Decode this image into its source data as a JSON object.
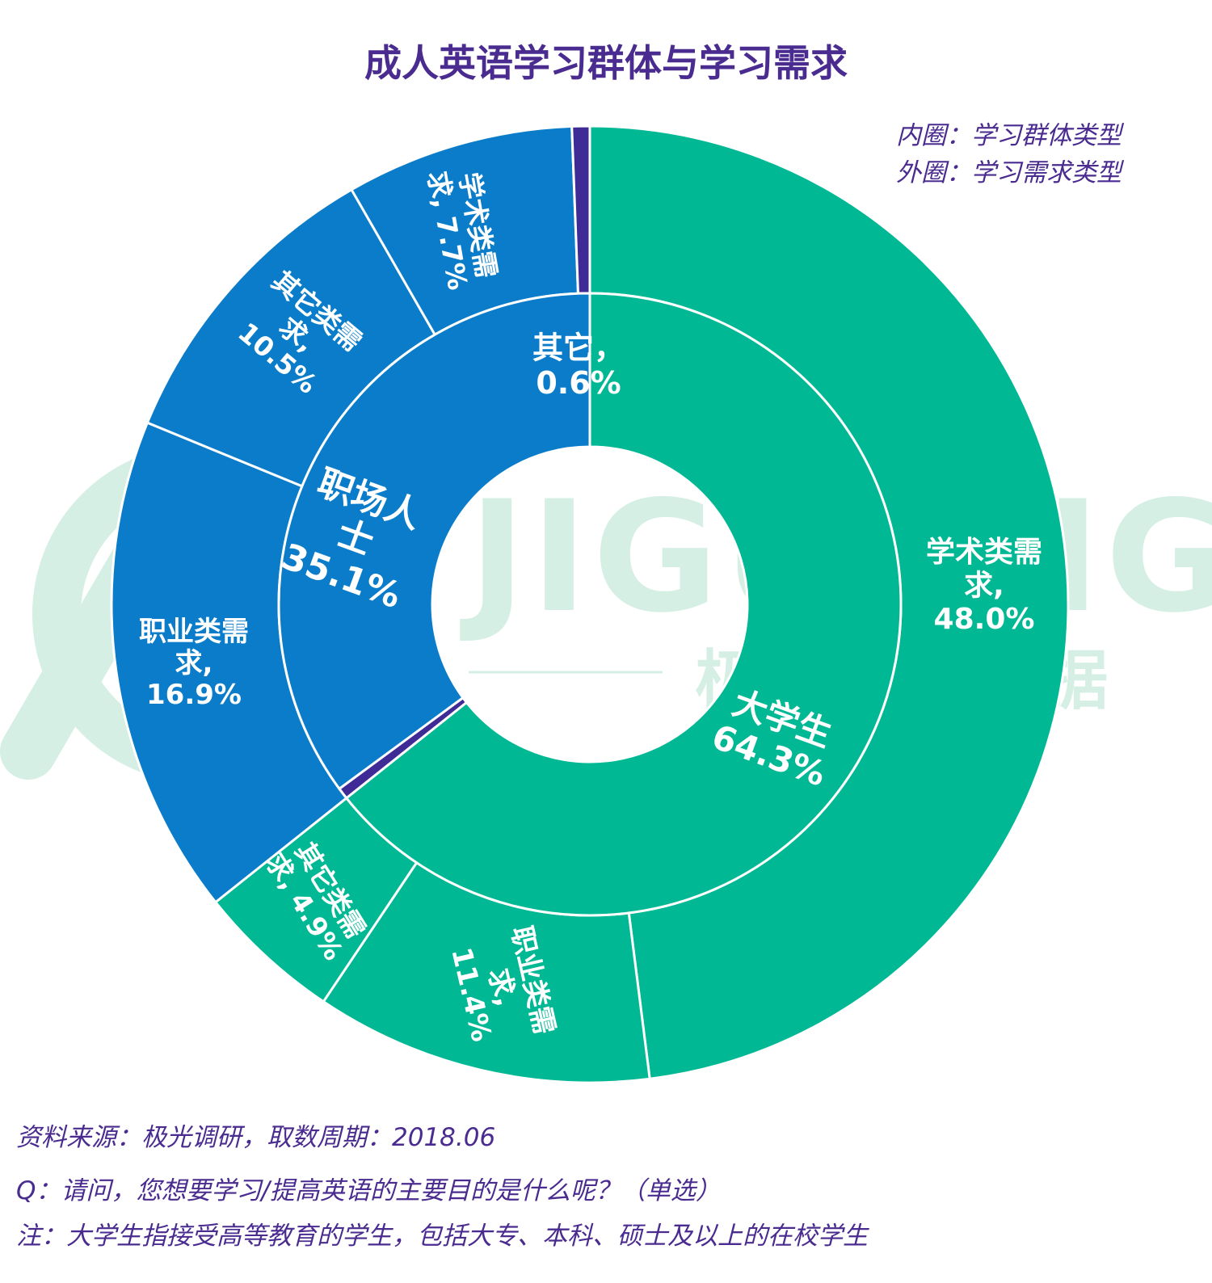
{
  "title": "成人英语学习群体与学习需求",
  "legend_note": {
    "inner": "内圈：学习群体类型",
    "outer": "外圈：学习需求类型"
  },
  "watermark": {
    "brand": "JIGUANG",
    "cn": "极 光 大 数 据"
  },
  "colors": {
    "students": "#00b894",
    "professionals": "#0a7cc9",
    "other": "#3f2b96",
    "title": "#4a2b8f",
    "watermark": "#d6efe4"
  },
  "chart_data": {
    "type": "sunburst",
    "inner": [
      {
        "name": "大学生",
        "value": 64.3,
        "color": "#00b894",
        "label": [
          "大学生",
          "64.3%"
        ]
      },
      {
        "name": "其它",
        "value": 0.6,
        "color": "#3f2b96",
        "label": [
          "其它，",
          "0.6%"
        ]
      },
      {
        "name": "职场人士",
        "value": 35.1,
        "color": "#0a7cc9",
        "label": [
          "职场人",
          "士",
          "35.1%"
        ]
      }
    ],
    "outer": [
      {
        "group": "大学生",
        "name": "学术类需求",
        "value": 48.0,
        "color": "#00b894",
        "label": [
          "学术类需",
          "求,",
          "48.0%"
        ]
      },
      {
        "group": "大学生",
        "name": "职业类需求",
        "value": 11.4,
        "color": "#00b894",
        "label": [
          "职业类需",
          "求,",
          "11.4%"
        ]
      },
      {
        "group": "大学生",
        "name": "其它类需求",
        "value": 4.9,
        "color": "#00b894",
        "label": [
          "其它类需",
          "求, 4.9%"
        ]
      },
      {
        "group": "职场人士",
        "name": "职业类需求",
        "value": 16.9,
        "color": "#0a7cc9",
        "label": [
          "职业类需",
          "求,",
          "16.9%"
        ]
      },
      {
        "group": "职场人士",
        "name": "其它类需求",
        "value": 10.5,
        "color": "#0a7cc9",
        "label": [
          "其它类需",
          "求,",
          "10.5%"
        ]
      },
      {
        "group": "职场人士",
        "name": "学术类需求",
        "value": 7.7,
        "color": "#0a7cc9",
        "label": [
          "学术类需",
          "求, 7.7%"
        ]
      },
      {
        "group": "其它",
        "name": "其它",
        "value": 0.6,
        "color": "#3f2b96",
        "label": []
      }
    ]
  },
  "footer": {
    "source": "资料来源：极光调研，取数周期：2018.06",
    "question": "Q：请问，您想要学习/提高英语的主要目的是什么呢？（单选）",
    "note": "注：大学生指接受高等教育的学生，包括大专、本科、硕士及以上的在校学生"
  }
}
